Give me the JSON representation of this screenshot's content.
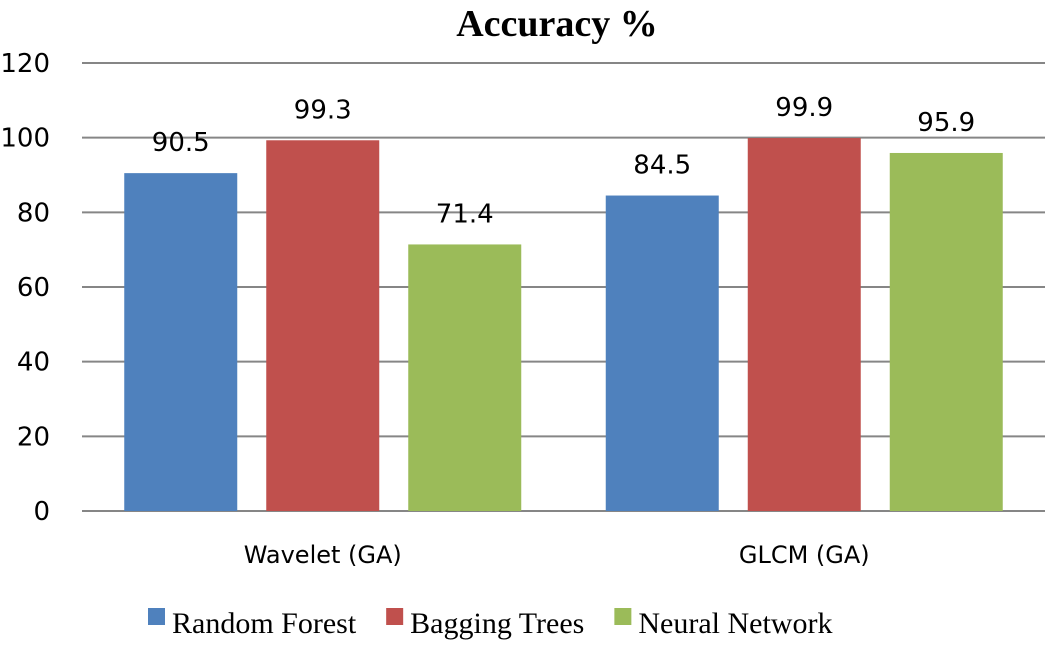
{
  "chart_data": {
    "type": "bar",
    "title": "Accuracy %",
    "xlabel": "",
    "ylabel": "",
    "categories": [
      "Wavelet (GA)",
      "GLCM (GA)"
    ],
    "series": [
      {
        "name": "Random Forest",
        "values": [
          90.5,
          84.5
        ],
        "color": "#4F81BD"
      },
      {
        "name": "Bagging Trees",
        "values": [
          99.3,
          99.9
        ],
        "color": "#C0504D"
      },
      {
        "name": "Neural Network",
        "values": [
          71.4,
          95.9
        ],
        "color": "#9BBB59"
      }
    ],
    "value_labels": [
      [
        "90.5",
        "84.5"
      ],
      [
        "99.3",
        "99.9"
      ],
      [
        "71.4",
        "95.9"
      ]
    ],
    "ylim": [
      0,
      120
    ],
    "yticks": [
      0,
      20,
      40,
      60,
      80,
      100,
      120
    ],
    "grid": true,
    "legend_position": "bottom"
  }
}
